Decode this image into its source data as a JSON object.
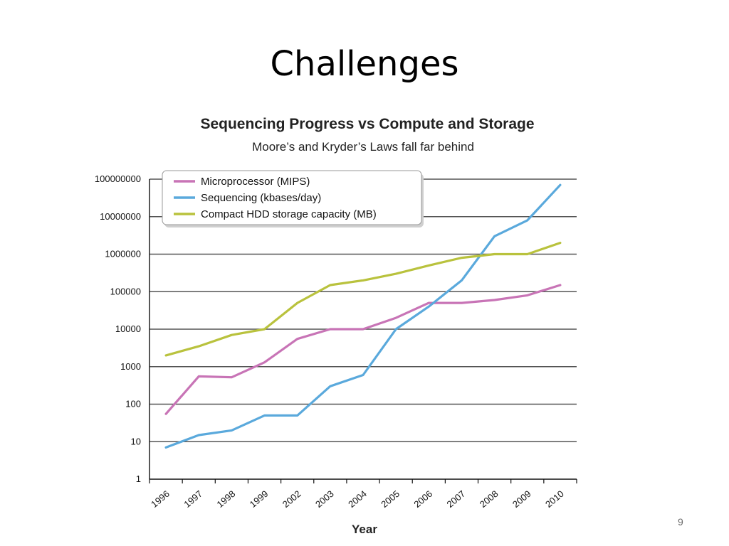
{
  "slide": {
    "title": "Challenges",
    "page_number": "9"
  },
  "chart_data": {
    "type": "line",
    "title": "Sequencing Progress vs Compute and Storage",
    "subtitle": "Moore’s and Kryder’s Laws fall far behind",
    "xlabel": "Year",
    "ylabel": "",
    "y_scale": "log",
    "ylim": [
      1,
      100000000
    ],
    "y_ticks": [
      "1",
      "10",
      "100",
      "1000",
      "10000",
      "100000",
      "1000000",
      "10000000",
      "100000000"
    ],
    "categories": [
      "1996",
      "1997",
      "1998",
      "1999",
      "2002",
      "2003",
      "2004",
      "2005",
      "2006",
      "2007",
      "2008",
      "2009",
      "2010"
    ],
    "grid": true,
    "legend_position": "top-left",
    "series": [
      {
        "name": "Microprocessor (MIPS)",
        "color": "#c874b6",
        "values": [
          55,
          550,
          520,
          1300,
          5500,
          10000,
          10000,
          20000,
          50000,
          50000,
          60000,
          80000,
          150000
        ]
      },
      {
        "name": "Sequencing (kbases/day)",
        "color": "#5aa9dc",
        "values": [
          7,
          15,
          20,
          50,
          50,
          300,
          600,
          10000,
          40000,
          200000,
          3000000,
          8000000,
          70000000
        ]
      },
      {
        "name": "Compact HDD storage capacity (MB)",
        "color": "#b9c23d",
        "values": [
          2000,
          3500,
          7000,
          10000,
          50000,
          150000,
          200000,
          300000,
          500000,
          800000,
          1000000,
          1000000,
          2000000
        ]
      }
    ]
  }
}
